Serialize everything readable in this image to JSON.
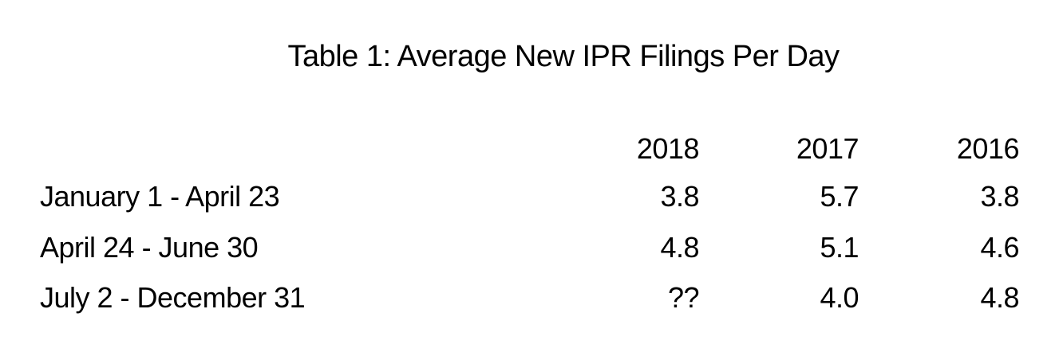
{
  "title": "Table 1: Average New IPR Filings Per Day",
  "columns": [
    "2018",
    "2017",
    "2016"
  ],
  "rows": [
    {
      "label": "January 1 - April 23",
      "values": [
        "3.8",
        "5.7",
        "3.8"
      ]
    },
    {
      "label": "April 24 - June 30",
      "values": [
        "4.8",
        "5.1",
        "4.6"
      ]
    },
    {
      "label": "July 2 - December 31",
      "values": [
        "??",
        "4.0",
        "4.8"
      ]
    }
  ]
}
